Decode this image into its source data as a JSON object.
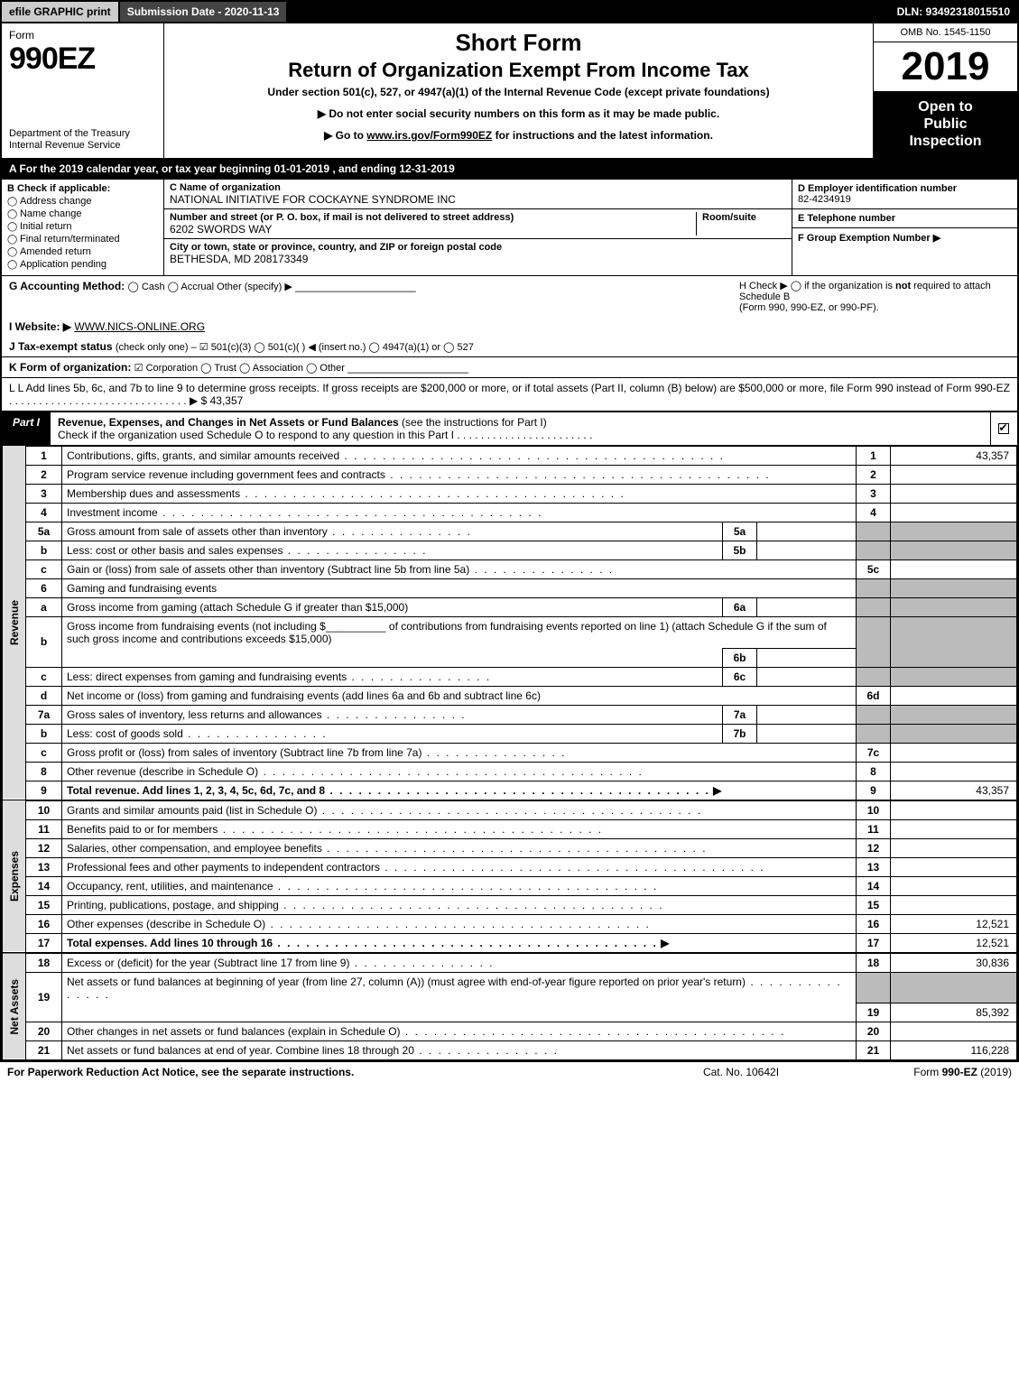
{
  "topbar": {
    "efile": "efile GRAPHIC print",
    "submission": "Submission Date - 2020-11-13",
    "dln": "DLN: 93492318015510"
  },
  "header": {
    "form_word": "Form",
    "form_num": "990EZ",
    "dept1": "Department of the Treasury",
    "dept2": "Internal Revenue Service",
    "short": "Short Form",
    "title": "Return of Organization Exempt From Income Tax",
    "sub": "Under section 501(c), 527, or 4947(a)(1) of the Internal Revenue Code (except private foundations)",
    "note1": "▶ Do not enter social security numbers on this form as it may be made public.",
    "note2_pre": "▶ Go to ",
    "note2_link": "www.irs.gov/Form990EZ",
    "note2_post": " for instructions and the latest information.",
    "omb": "OMB No. 1545-1150",
    "year": "2019",
    "open1": "Open to",
    "open2": "Public",
    "open3": "Inspection"
  },
  "period": "A  For the 2019 calendar year, or tax year beginning 01-01-2019 , and ending 12-31-2019",
  "B": {
    "hdr": "B  Check if applicable:",
    "items": [
      "Address change",
      "Name change",
      "Initial return",
      "Final return/terminated",
      "Amended return",
      "Application pending"
    ]
  },
  "C": {
    "name_lbl": "C Name of organization",
    "name": "NATIONAL INITIATIVE FOR COCKAYNE SYNDROME INC",
    "street_lbl": "Number and street (or P. O. box, if mail is not delivered to street address)",
    "street": "6202 SWORDS WAY",
    "room_lbl": "Room/suite",
    "city_lbl": "City or town, state or province, country, and ZIP or foreign postal code",
    "city": "BETHESDA, MD  208173349"
  },
  "D": {
    "hdr": "D Employer identification number",
    "ein": "82-4234919",
    "E_hdr": "E Telephone number",
    "F_hdr": "F Group Exemption Number   ▶"
  },
  "G": {
    "label": "G Accounting Method:",
    "opts": "◯ Cash  ◯ Accrual   Other (specify) ▶",
    "blank": "____________________"
  },
  "H": {
    "txt1": "H  Check ▶  ◯  if the organization is ",
    "not": "not",
    "txt2": " required to attach Schedule B",
    "txt3": "(Form 990, 990-EZ, or 990-PF)."
  },
  "I": {
    "label": "I Website: ▶",
    "val": "WWW.NICS-ONLINE.ORG"
  },
  "J": {
    "label": "J Tax-exempt status",
    "rest": " (check only one) –  ☑ 501(c)(3)  ◯  501(c)(   ) ◀ (insert no.)  ◯  4947(a)(1) or  ◯  527"
  },
  "K": {
    "label": "K Form of organization:",
    "rest": "  ☑ Corporation   ◯ Trust   ◯ Association   ◯ Other",
    "blank": "____________________"
  },
  "L": {
    "text": "L Add lines 5b, 6c, and 7b to line 9 to determine gross receipts. If gross receipts are $200,000 or more, or if total assets (Part II, column (B) below) are $500,000 or more, file Form 990 instead of Form 990-EZ  . . . . . . . . . . . . . . . . . . . . . . . . . . . . . .  ▶ $ 43,357"
  },
  "partI": {
    "tag": "Part I",
    "title": "Revenue, Expenses, and Changes in Net Assets or Fund Balances",
    "hint": " (see the instructions for Part I)",
    "check": "Check if the organization used Schedule O to respond to any question in this Part I . . . . . . . . . . . . . . . . . . . . . . ."
  },
  "sections": {
    "revenue": "Revenue",
    "expenses": "Expenses",
    "netassets": "Net Assets"
  },
  "lines": {
    "l1": {
      "n": "1",
      "d": "Contributions, gifts, grants, and similar amounts received",
      "num": "1",
      "val": "43,357"
    },
    "l2": {
      "n": "2",
      "d": "Program service revenue including government fees and contracts",
      "num": "2",
      "val": ""
    },
    "l3": {
      "n": "3",
      "d": "Membership dues and assessments",
      "num": "3",
      "val": ""
    },
    "l4": {
      "n": "4",
      "d": "Investment income",
      "num": "4",
      "val": ""
    },
    "l5a": {
      "n": "5a",
      "d": "Gross amount from sale of assets other than inventory",
      "sub": "5a",
      "subval": ""
    },
    "l5b": {
      "n": "b",
      "d": "Less: cost or other basis and sales expenses",
      "sub": "5b",
      "subval": ""
    },
    "l5c": {
      "n": "c",
      "d": "Gain or (loss) from sale of assets other than inventory (Subtract line 5b from line 5a)",
      "num": "5c",
      "val": ""
    },
    "l6": {
      "n": "6",
      "d": "Gaming and fundraising events"
    },
    "l6a": {
      "n": "a",
      "d": "Gross income from gaming (attach Schedule G if greater than $15,000)",
      "sub": "6a",
      "subval": ""
    },
    "l6b": {
      "n": "b",
      "d1": "Gross income from fundraising events (not including $",
      "d2": " of contributions from fundraising events reported on line 1) (attach Schedule G if the sum of such gross income and contributions exceeds $15,000)",
      "blank": "__________",
      "sub": "6b",
      "subval": ""
    },
    "l6c": {
      "n": "c",
      "d": "Less: direct expenses from gaming and fundraising events",
      "sub": "6c",
      "subval": ""
    },
    "l6d": {
      "n": "d",
      "d": "Net income or (loss) from gaming and fundraising events (add lines 6a and 6b and subtract line 6c)",
      "num": "6d",
      "val": ""
    },
    "l7a": {
      "n": "7a",
      "d": "Gross sales of inventory, less returns and allowances",
      "sub": "7a",
      "subval": ""
    },
    "l7b": {
      "n": "b",
      "d": "Less: cost of goods sold",
      "sub": "7b",
      "subval": ""
    },
    "l7c": {
      "n": "c",
      "d": "Gross profit or (loss) from sales of inventory (Subtract line 7b from line 7a)",
      "num": "7c",
      "val": ""
    },
    "l8": {
      "n": "8",
      "d": "Other revenue (describe in Schedule O)",
      "num": "8",
      "val": ""
    },
    "l9": {
      "n": "9",
      "d": "Total revenue. Add lines 1, 2, 3, 4, 5c, 6d, 7c, and 8",
      "arrow": "▶",
      "num": "9",
      "val": "43,357"
    },
    "l10": {
      "n": "10",
      "d": "Grants and similar amounts paid (list in Schedule O)",
      "num": "10",
      "val": ""
    },
    "l11": {
      "n": "11",
      "d": "Benefits paid to or for members",
      "num": "11",
      "val": ""
    },
    "l12": {
      "n": "12",
      "d": "Salaries, other compensation, and employee benefits",
      "num": "12",
      "val": ""
    },
    "l13": {
      "n": "13",
      "d": "Professional fees and other payments to independent contractors",
      "num": "13",
      "val": ""
    },
    "l14": {
      "n": "14",
      "d": "Occupancy, rent, utilities, and maintenance",
      "num": "14",
      "val": ""
    },
    "l15": {
      "n": "15",
      "d": "Printing, publications, postage, and shipping",
      "num": "15",
      "val": ""
    },
    "l16": {
      "n": "16",
      "d": "Other expenses (describe in Schedule O)",
      "num": "16",
      "val": "12,521"
    },
    "l17": {
      "n": "17",
      "d": "Total expenses. Add lines 10 through 16",
      "arrow": "▶",
      "num": "17",
      "val": "12,521"
    },
    "l18": {
      "n": "18",
      "d": "Excess or (deficit) for the year (Subtract line 17 from line 9)",
      "num": "18",
      "val": "30,836"
    },
    "l19": {
      "n": "19",
      "d": "Net assets or fund balances at beginning of year (from line 27, column (A)) (must agree with end-of-year figure reported on prior year's return)",
      "num": "19",
      "val": "85,392"
    },
    "l20": {
      "n": "20",
      "d": "Other changes in net assets or fund balances (explain in Schedule O)",
      "num": "20",
      "val": ""
    },
    "l21": {
      "n": "21",
      "d": "Net assets or fund balances at end of year. Combine lines 18 through 20",
      "num": "21",
      "val": "116,228"
    }
  },
  "footer": {
    "left": "For Paperwork Reduction Act Notice, see the separate instructions.",
    "center": "Cat. No. 10642I",
    "right_pre": "Form ",
    "right_form": "990-EZ",
    "right_post": " (2019)"
  },
  "colors": {
    "black": "#000000",
    "white": "#ffffff",
    "grey_btn": "#cccccc",
    "grey_dark": "#444444",
    "grey_shade": "#bbbbbb",
    "grey_side": "#dddddd"
  }
}
